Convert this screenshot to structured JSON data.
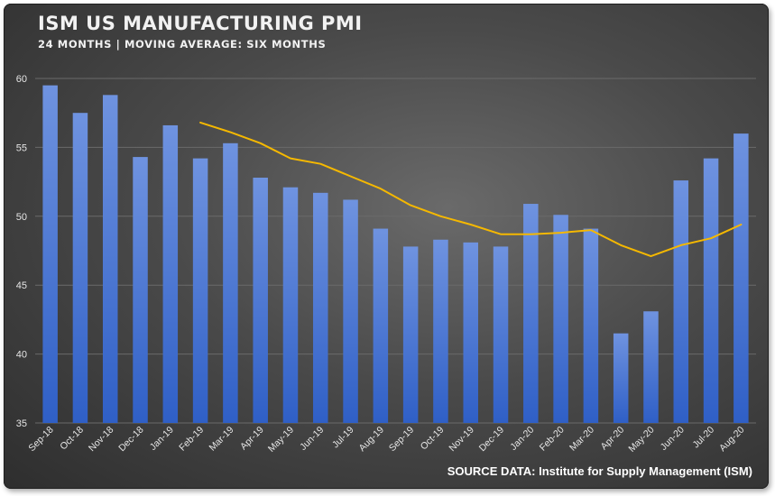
{
  "header": {
    "title": "ISM US MANUFACTURING PMI",
    "subtitle": "24 MONTHS | MOVING AVERAGE: SIX MONTHS"
  },
  "footer": {
    "source": "SOURCE DATA: Institute for Supply Management (ISM)"
  },
  "colors": {
    "bar_top": "#6f93e0",
    "bar_bottom": "#2f5fc6",
    "moving_average": "#f5b800",
    "gridline": "#6a6a6a",
    "tick_text": "#e6e6e6"
  },
  "chart_data": {
    "type": "bar",
    "title": "ISM US MANUFACTURING PMI",
    "subtitle": "24 MONTHS | MOVING AVERAGE: SIX MONTHS",
    "categories": [
      "Sep-18",
      "Oct-18",
      "Nov-18",
      "Dec-18",
      "Jan-19",
      "Feb-19",
      "Mar-19",
      "Apr-19",
      "May-19",
      "Jun-19",
      "Jul-19",
      "Aug-19",
      "Sep-19",
      "Oct-19",
      "Nov-19",
      "Dec-19",
      "Jan-20",
      "Feb-20",
      "Mar-20",
      "Apr-20",
      "May-20",
      "Jun-20",
      "Jul-20",
      "Aug-20"
    ],
    "series": [
      {
        "type": "bar",
        "values": [
          59.5,
          57.5,
          58.8,
          54.3,
          56.6,
          54.2,
          55.3,
          52.8,
          52.1,
          51.7,
          51.2,
          49.1,
          47.8,
          48.3,
          48.1,
          47.8,
          50.9,
          50.1,
          49.1,
          41.5,
          43.1,
          52.6,
          54.2,
          56.0
        ]
      },
      {
        "type": "line",
        "values": [
          null,
          null,
          null,
          null,
          null,
          56.8,
          56.1,
          55.3,
          54.2,
          53.8,
          52.9,
          52.0,
          50.8,
          50.0,
          49.4,
          48.7,
          48.7,
          48.8,
          49.0,
          47.9,
          47.1,
          47.9,
          48.4,
          49.4
        ]
      }
    ],
    "ylim": [
      35,
      60
    ],
    "yticks": [
      35,
      40,
      45,
      50,
      55,
      60
    ],
    "grid": true,
    "xlabel": "",
    "ylabel": ""
  }
}
